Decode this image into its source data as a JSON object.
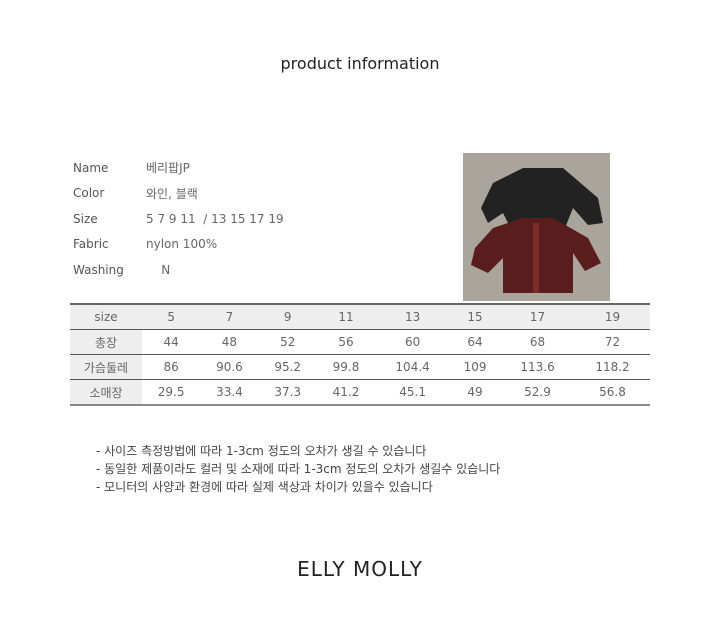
{
  "title": "product information",
  "info": [
    {
      "key": "Name",
      "value": "베리팝JP"
    },
    {
      "key": "Color",
      "value": "와인, 블랙"
    },
    {
      "key": "Size",
      "value": "5 7 9 11  / 13 15 17 19"
    },
    {
      "key": "Fabric",
      "value": "nylon 100%"
    },
    {
      "key": "Washing",
      "value": "    N"
    }
  ],
  "size_table": {
    "header": [
      "size",
      "5",
      "7",
      "9",
      "11",
      "13",
      "15",
      "17",
      "19"
    ],
    "rows": [
      [
        "총장",
        "44",
        "48",
        "52",
        "56",
        "60",
        "64",
        "68",
        "72"
      ],
      [
        "가슴둘레",
        "86",
        "90.6",
        "95.2",
        "99.8",
        "104.4",
        "109",
        "113.6",
        "118.2"
      ],
      [
        "소매장",
        "29.5",
        "33.4",
        "37.3",
        "41.2",
        "45.1",
        "49",
        "52.9",
        "56.8"
      ]
    ]
  },
  "notes": [
    "- 사이즈 측정방법에 따라 1-3cm 정도의 오차가 생길 수 있습니다",
    "- 동일한 제품이라도 컬러 및 소재에 따라 1-3cm 정도의 오차가 생길수 있습니다",
    "- 모니터의 사양과 환경에 따라 실제 색상과 차이가 있을수 있습니다"
  ],
  "brand": "ELLY MOLLY"
}
